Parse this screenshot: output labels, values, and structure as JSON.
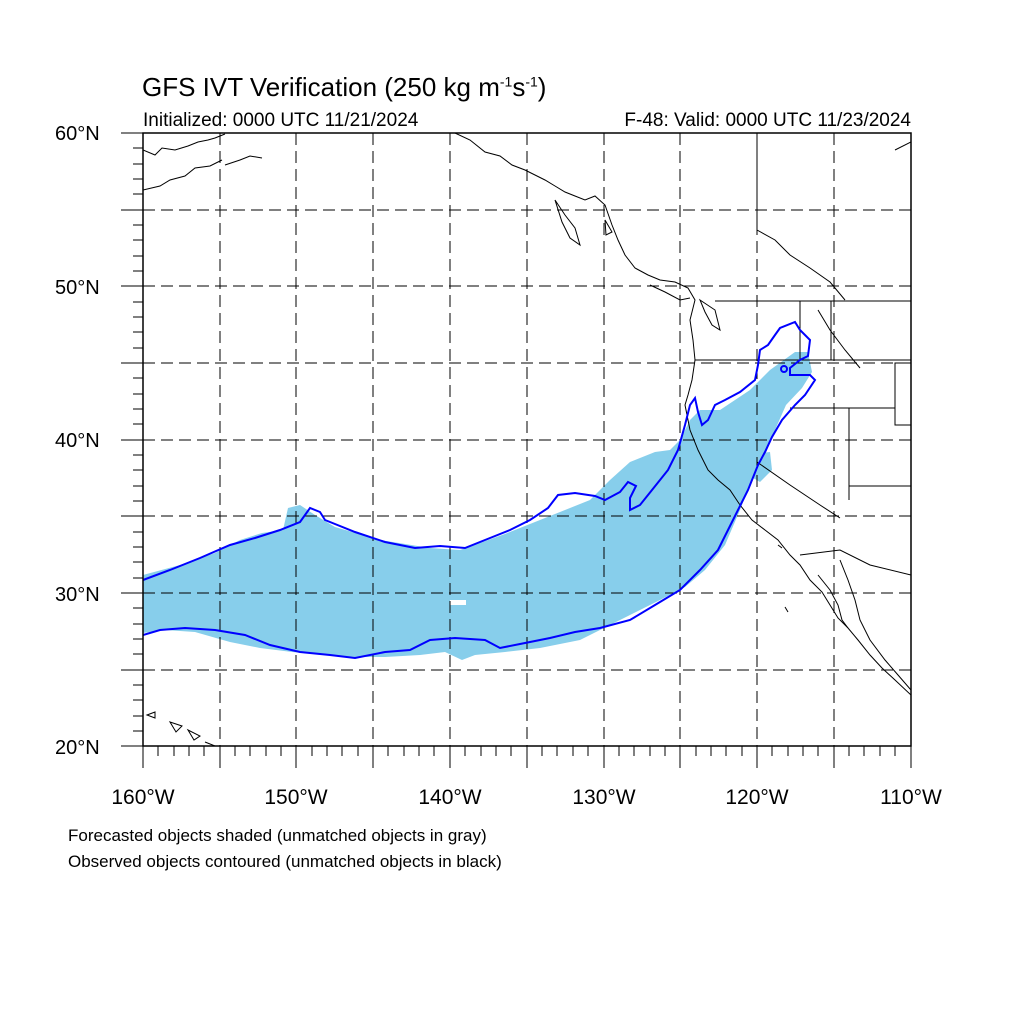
{
  "map": {
    "title_main": "GFS IVT Verification (250 kg m",
    "title_exp1": "-1",
    "title_mid": "s",
    "title_exp2": "-1",
    "title_end": ")",
    "initialized": "Initialized: 0000 UTC 11/21/2024",
    "valid": "F-48: Valid: 0000 UTC 11/23/2024",
    "lat_labels": [
      "60°N",
      "50°N",
      "40°N",
      "30°N",
      "20°N"
    ],
    "lon_labels": [
      "160°W",
      "150°W",
      "140°W",
      "130°W",
      "120°W",
      "110°W"
    ],
    "notes": [
      "Forecasted objects shaded (unmatched objects in gray)",
      "Observed objects contoured (unmatched objects in black)"
    ],
    "extent": {
      "lon": [
        -160,
        -110
      ],
      "lat": [
        20,
        60
      ]
    },
    "colors": {
      "forecast_fill": "#87ceeb",
      "observed_contour": "#0000ff",
      "coastline": "#000000",
      "grid": "#000000"
    }
  }
}
